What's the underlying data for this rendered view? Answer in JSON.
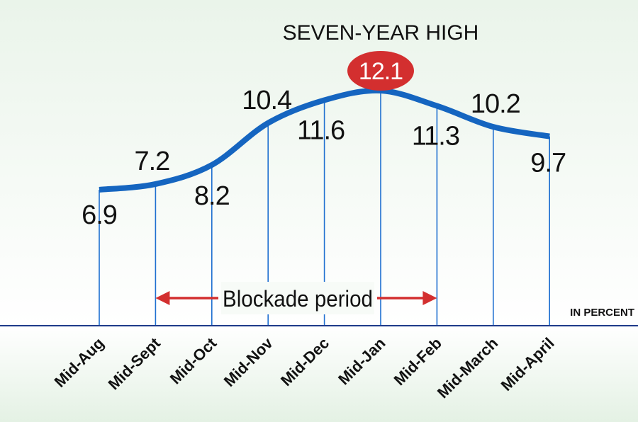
{
  "chart_data": {
    "type": "line",
    "title": "SEVEN-YEAR HIGH",
    "unit_label": "IN PERCENT",
    "categories": [
      "Mid-Aug",
      "Mid-Sept",
      "Mid-Oct",
      "Mid-Nov",
      "Mid-Dec",
      "Mid-Jan",
      "Mid-Feb",
      "Mid-March",
      "Mid-April"
    ],
    "values": [
      6.9,
      7.2,
      8.2,
      10.4,
      11.6,
      12.1,
      11.3,
      10.2,
      9.7
    ],
    "value_labels": [
      "6.9",
      "7.2",
      "8.2",
      "10.4",
      "11.6",
      "12.1",
      "11.3",
      "10.2",
      "9.7"
    ],
    "highlight_index": 5,
    "annotation": {
      "text": "Blockade period",
      "from_category": "Mid-Sept",
      "to_category": "Mid-Feb"
    },
    "grid": false,
    "colors": {
      "line": "#1565c0",
      "drop_lines": "#1e6fd0",
      "axis": "#1f3a8a",
      "highlight": "#d32f2f",
      "arrow": "#d32f2f",
      "background_top": "#e4f2e4",
      "background_bottom": "#f4faf4"
    }
  }
}
